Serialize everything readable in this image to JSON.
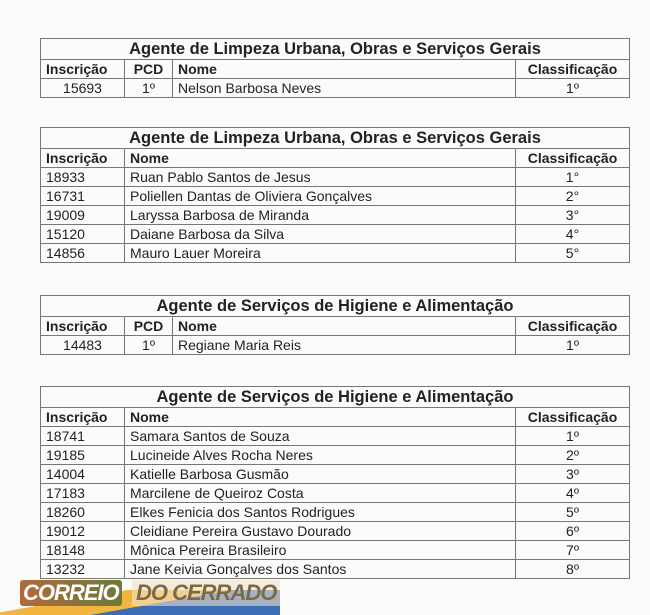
{
  "tables": [
    {
      "title": "Agente de Limpeza Urbana, Obras e Serviços Gerais",
      "headers": {
        "inscricao": "Inscrição",
        "pcd": "PCD",
        "nome": "Nome",
        "classificacao": "Classificação"
      },
      "rows": [
        {
          "inscricao": "15693",
          "pcd": "1º",
          "nome": "Nelson Barbosa Neves",
          "classificacao": "1º"
        }
      ]
    },
    {
      "title": "Agente de Limpeza Urbana, Obras e Serviços Gerais",
      "headers": {
        "inscricao": "Inscrição",
        "nome": "Nome",
        "classificacao": "Classificação"
      },
      "rows": [
        {
          "inscricao": "18933",
          "nome": "Ruan Pablo Santos de Jesus",
          "classificacao": "1°"
        },
        {
          "inscricao": "16731",
          "nome": "Poliellen Dantas de Oliviera Gonçalves",
          "classificacao": "2°"
        },
        {
          "inscricao": "19009",
          "nome": "Laryssa Barbosa de Miranda",
          "classificacao": "3°"
        },
        {
          "inscricao": "15120",
          "nome": "Daiane Barbosa da Silva",
          "classificacao": "4°"
        },
        {
          "inscricao": "14856",
          "nome": "Mauro Lauer Moreira",
          "classificacao": "5°"
        }
      ]
    },
    {
      "title": "Agente de Serviços de Higiene e Alimentação",
      "headers": {
        "inscricao": "Inscrição",
        "pcd": "PCD",
        "nome": "Nome",
        "classificacao": "Classificação"
      },
      "rows": [
        {
          "inscricao": "14483",
          "pcd": "1º",
          "nome": "Regiane Maria Reis",
          "classificacao": "1º"
        }
      ]
    },
    {
      "title": "Agente de Serviços de Higiene e Alimentação",
      "headers": {
        "inscricao": "Inscrição",
        "nome": "Nome",
        "classificacao": "Classificação"
      },
      "rows": [
        {
          "inscricao": "18741",
          "nome": "Samara Santos de Souza",
          "classificacao": "1º"
        },
        {
          "inscricao": "19185",
          "nome": "Lucineide Alves Rocha Neres",
          "classificacao": "2º"
        },
        {
          "inscricao": "14004",
          "nome": "Katielle Barbosa Gusmão",
          "classificacao": "3º"
        },
        {
          "inscricao": "17183",
          "nome": "Marcilene de Queiroz Costa",
          "classificacao": "4º"
        },
        {
          "inscricao": "18260",
          "nome": "Elkes Fenicia dos Santos Rodrigues",
          "classificacao": "5º"
        },
        {
          "inscricao": "19012",
          "nome": "Cleidiane Pereira Gustavo Dourado",
          "classificacao": "6º"
        },
        {
          "inscricao": "18148",
          "nome": "Mônica Pereira Brasileiro",
          "classificacao": "7º"
        },
        {
          "inscricao": "13232",
          "nome": "Jane Keivia Gonçalves dos Santos",
          "classificacao": "8º"
        }
      ]
    }
  ],
  "logo": {
    "part1": "CORREIO",
    "part2": "DO CERRADO"
  }
}
